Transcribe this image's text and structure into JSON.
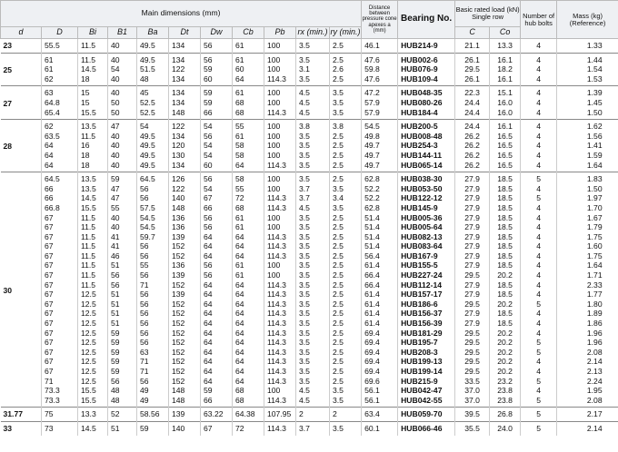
{
  "header": {
    "main_dimensions": "Main dimensions (mm)",
    "distance": "Distance between pressure cone apexes a (mm)",
    "bearing_no": "Bearing No.",
    "basic_load": "Basic rated load (kN) Single row",
    "number_of_hub_bolts": "Number of hub bolts",
    "mass": "Mass (kg) (Reference)",
    "symbols": [
      "d",
      "D",
      "Bi",
      "B1",
      "Ba",
      "Dt",
      "Dw",
      "Cb",
      "Pb",
      "rx (min.)",
      "ry (min.)"
    ],
    "load_symbols": [
      "C",
      "Co"
    ]
  },
  "groups": [
    {
      "d": "23",
      "rows": [
        [
          "55.5",
          "11.5",
          "40",
          "49.5",
          "134",
          "56",
          "61",
          "100",
          "3.5",
          "2.5",
          "46.1",
          "HUB214-9",
          "21.1",
          "13.3",
          "4",
          "1.33"
        ]
      ]
    },
    {
      "d": "25",
      "rows": [
        [
          "61",
          "11.5",
          "40",
          "49.5",
          "134",
          "56",
          "61",
          "100",
          "3.5",
          "2.5",
          "47.6",
          "HUB002-6",
          "26.1",
          "16.1",
          "4",
          "1.44"
        ],
        [
          "61",
          "14.5",
          "54",
          "51.5",
          "122",
          "59",
          "60",
          "100",
          "3.1",
          "2.6",
          "59.8",
          "HUB076-9",
          "29.5",
          "18.2",
          "4",
          "1.54"
        ],
        [
          "62",
          "18",
          "40",
          "48",
          "134",
          "60",
          "64",
          "114.3",
          "3.5",
          "2.5",
          "47.6",
          "HUB109-4",
          "26.1",
          "16.1",
          "4",
          "1.53"
        ]
      ]
    },
    {
      "d": "27",
      "rows": [
        [
          "63",
          "15",
          "40",
          "45",
          "134",
          "59",
          "61",
          "100",
          "4.5",
          "3.5",
          "47.2",
          "HUB048-35",
          "22.3",
          "15.1",
          "4",
          "1.39"
        ],
        [
          "64.8",
          "15",
          "50",
          "52.5",
          "134",
          "59",
          "68",
          "100",
          "4.5",
          "3.5",
          "57.9",
          "HUB080-26",
          "24.4",
          "16.0",
          "4",
          "1.45"
        ],
        [
          "65.4",
          "15.5",
          "50",
          "52.5",
          "148",
          "66",
          "68",
          "114.3",
          "4.5",
          "3.5",
          "57.9",
          "HUB184-4",
          "24.4",
          "16.0",
          "4",
          "1.50"
        ]
      ]
    },
    {
      "d": "28",
      "rows": [
        [
          "62",
          "13.5",
          "47",
          "54",
          "122",
          "54",
          "55",
          "100",
          "3.8",
          "3.8",
          "54.5",
          "HUB200-5",
          "24.4",
          "16.1",
          "4",
          "1.62"
        ],
        [
          "63.5",
          "11.5",
          "40",
          "49.5",
          "134",
          "56",
          "61",
          "100",
          "3.5",
          "2.5",
          "49.8",
          "HUB008-48",
          "26.2",
          "16.5",
          "4",
          "1.56"
        ],
        [
          "64",
          "16",
          "40",
          "49.5",
          "120",
          "54",
          "58",
          "100",
          "3.5",
          "2.5",
          "49.7",
          "HUB254-3",
          "26.2",
          "16.5",
          "4",
          "1.41"
        ],
        [
          "64",
          "18",
          "40",
          "49.5",
          "130",
          "54",
          "58",
          "100",
          "3.5",
          "2.5",
          "49.7",
          "HUB144-11",
          "26.2",
          "16.5",
          "4",
          "1.59"
        ],
        [
          "64",
          "18",
          "40",
          "49.5",
          "134",
          "60",
          "64",
          "114.3",
          "3.5",
          "2.5",
          "49.7",
          "HUB065-14",
          "26.2",
          "16.5",
          "4",
          "1.64"
        ]
      ]
    },
    {
      "d": "30",
      "rows": [
        [
          "64.5",
          "13.5",
          "59",
          "64.5",
          "126",
          "56",
          "58",
          "100",
          "3.5",
          "2.5",
          "62.8",
          "HUB038-30",
          "27.9",
          "18.5",
          "5",
          "1.83"
        ],
        [
          "66",
          "13.5",
          "47",
          "56",
          "122",
          "54",
          "55",
          "100",
          "3.7",
          "3.5",
          "52.2",
          "HUB053-50",
          "27.9",
          "18.5",
          "4",
          "1.50"
        ],
        [
          "66",
          "14.5",
          "47",
          "56",
          "140",
          "67",
          "72",
          "114.3",
          "3.7",
          "3.4",
          "52.2",
          "HUB122-12",
          "27.9",
          "18.5",
          "5",
          "1.97"
        ],
        [
          "66.8",
          "15.5",
          "55",
          "57.5",
          "148",
          "66",
          "68",
          "114.3",
          "4.5",
          "3.5",
          "62.8",
          "HUB145-9",
          "27.9",
          "18.5",
          "4",
          "1.70"
        ],
        [
          "67",
          "11.5",
          "40",
          "54.5",
          "136",
          "56",
          "61",
          "100",
          "3.5",
          "2.5",
          "51.4",
          "HUB005-36",
          "27.9",
          "18.5",
          "4",
          "1.67"
        ],
        [
          "67",
          "11.5",
          "40",
          "54.5",
          "136",
          "56",
          "61",
          "100",
          "3.5",
          "2.5",
          "51.4",
          "HUB005-64",
          "27.9",
          "18.5",
          "4",
          "1.79"
        ],
        [
          "67",
          "11.5",
          "41",
          "59.7",
          "139",
          "64",
          "64",
          "114.3",
          "3.5",
          "2.5",
          "51.4",
          "HUB082-13",
          "27.9",
          "18.5",
          "4",
          "1.75"
        ],
        [
          "67",
          "11.5",
          "41",
          "56",
          "152",
          "64",
          "64",
          "114.3",
          "3.5",
          "2.5",
          "51.4",
          "HUB083-64",
          "27.9",
          "18.5",
          "4",
          "1.60"
        ],
        [
          "67",
          "11.5",
          "46",
          "56",
          "152",
          "64",
          "64",
          "114.3",
          "3.5",
          "2.5",
          "56.4",
          "HUB167-9",
          "27.9",
          "18.5",
          "4",
          "1.75"
        ],
        [
          "67",
          "11.5",
          "51",
          "55",
          "136",
          "56",
          "61",
          "100",
          "3.5",
          "2.5",
          "61.4",
          "HUB155-5",
          "27.9",
          "18.5",
          "4",
          "1.64"
        ],
        [
          "67",
          "11.5",
          "56",
          "56",
          "139",
          "56",
          "61",
          "100",
          "3.5",
          "2.5",
          "66.4",
          "HUB227-24",
          "29.5",
          "20.2",
          "4",
          "1.71"
        ],
        [
          "67",
          "11.5",
          "56",
          "71",
          "152",
          "64",
          "64",
          "114.3",
          "3.5",
          "2.5",
          "66.4",
          "HUB112-14",
          "27.9",
          "18.5",
          "4",
          "2.33"
        ],
        [
          "67",
          "12.5",
          "51",
          "56",
          "139",
          "64",
          "64",
          "114.3",
          "3.5",
          "2.5",
          "61.4",
          "HUB157-17",
          "27.9",
          "18.5",
          "4",
          "1.77"
        ],
        [
          "67",
          "12.5",
          "51",
          "56",
          "152",
          "64",
          "64",
          "114.3",
          "3.5",
          "2.5",
          "61.4",
          "HUB186-6",
          "29.5",
          "20.2",
          "5",
          "1.80"
        ],
        [
          "67",
          "12.5",
          "51",
          "56",
          "152",
          "64",
          "64",
          "114.3",
          "3.5",
          "2.5",
          "61.4",
          "HUB156-37",
          "27.9",
          "18.5",
          "4",
          "1.89"
        ],
        [
          "67",
          "12.5",
          "51",
          "56",
          "152",
          "64",
          "64",
          "114.3",
          "3.5",
          "2.5",
          "61.4",
          "HUB156-39",
          "27.9",
          "18.5",
          "4",
          "1.86"
        ],
        [
          "67",
          "12.5",
          "59",
          "56",
          "152",
          "64",
          "64",
          "114.3",
          "3.5",
          "2.5",
          "69.4",
          "HUB181-29",
          "29.5",
          "20.2",
          "4",
          "1.96"
        ],
        [
          "67",
          "12.5",
          "59",
          "56",
          "152",
          "64",
          "64",
          "114.3",
          "3.5",
          "2.5",
          "69.4",
          "HUB195-7",
          "29.5",
          "20.2",
          "5",
          "1.96"
        ],
        [
          "67",
          "12.5",
          "59",
          "63",
          "152",
          "64",
          "64",
          "114.3",
          "3.5",
          "2.5",
          "69.4",
          "HUB208-3",
          "29.5",
          "20.2",
          "5",
          "2.08"
        ],
        [
          "67",
          "12.5",
          "59",
          "71",
          "152",
          "64",
          "64",
          "114.3",
          "3.5",
          "2.5",
          "69.4",
          "HUB199-13",
          "29.5",
          "20.2",
          "4",
          "2.14"
        ],
        [
          "67",
          "12.5",
          "59",
          "71",
          "152",
          "64",
          "64",
          "114.3",
          "3.5",
          "2.5",
          "69.4",
          "HUB199-14",
          "29.5",
          "20.2",
          "4",
          "2.13"
        ],
        [
          "71",
          "12.5",
          "56",
          "56",
          "152",
          "64",
          "64",
          "114.3",
          "3.5",
          "2.5",
          "69.6",
          "HUB215-9",
          "33.5",
          "23.2",
          "5",
          "2.24"
        ],
        [
          "73.3",
          "15.5",
          "48",
          "49",
          "148",
          "59",
          "68",
          "100",
          "4.5",
          "3.5",
          "56.1",
          "HUB042-47",
          "37.0",
          "23.8",
          "4",
          "1.95"
        ],
        [
          "73.3",
          "15.5",
          "48",
          "49",
          "148",
          "66",
          "68",
          "114.3",
          "4.5",
          "3.5",
          "56.1",
          "HUB042-55",
          "37.0",
          "23.8",
          "5",
          "2.08"
        ]
      ]
    },
    {
      "d": "31.77",
      "rows": [
        [
          "75",
          "13.3",
          "52",
          "58.56",
          "139",
          "63.22",
          "64.38",
          "107.95",
          "2",
          "2",
          "63.4",
          "HUB059-70",
          "39.5",
          "26.8",
          "5",
          "2.17"
        ]
      ]
    },
    {
      "d": "33",
      "rows": [
        [
          "73",
          "14.5",
          "51",
          "59",
          "140",
          "67",
          "72",
          "114.3",
          "3.7",
          "3.5",
          "60.1",
          "HUB066-46",
          "35.5",
          "24.0",
          "5",
          "2.14"
        ]
      ]
    }
  ]
}
